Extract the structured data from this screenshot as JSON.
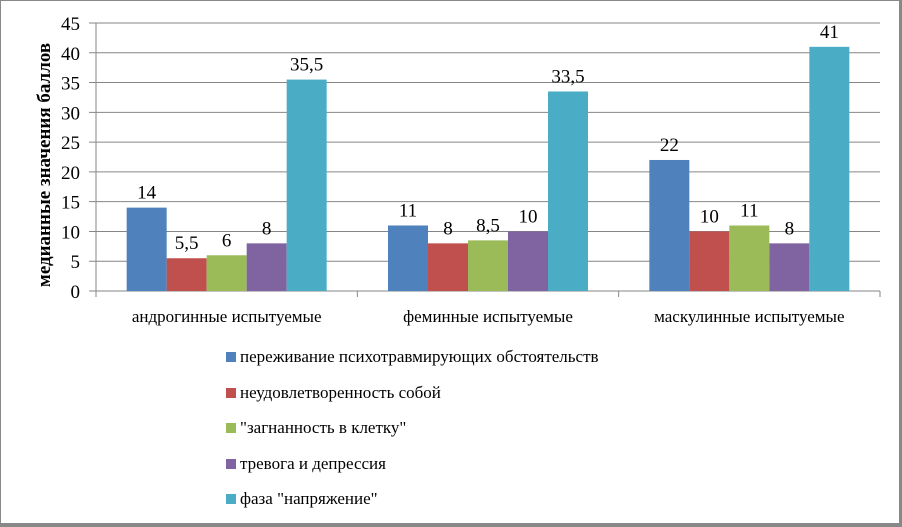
{
  "chart_data": {
    "type": "bar",
    "title": "",
    "xlabel": "",
    "ylabel": "медианные значения баллов",
    "ylim": [
      0,
      45
    ],
    "yticks": [
      0,
      5,
      10,
      15,
      20,
      25,
      30,
      35,
      40,
      45
    ],
    "grid": true,
    "legend_position": "bottom",
    "categories": [
      "андрогинные испытуемые",
      "феминные испытуемые",
      "маскулинные  испытуемые"
    ],
    "series": [
      {
        "name": "переживание психотравмирующих  обстоятельств",
        "color": "#4F81BD",
        "values": [
          14,
          11,
          22
        ],
        "labels": [
          "14",
          "11",
          "22"
        ]
      },
      {
        "name": "неудовлетворенность собой",
        "color": "#C0504D",
        "values": [
          5.5,
          8,
          10
        ],
        "labels": [
          "5,5",
          "8",
          "10"
        ]
      },
      {
        "name": "\"загнанность в клетку\"",
        "color": "#9BBB59",
        "values": [
          6,
          8.5,
          11
        ],
        "labels": [
          "6",
          "8,5",
          "11"
        ]
      },
      {
        "name": "тревога и депрессия",
        "color": "#8064A2",
        "values": [
          8,
          10,
          8
        ],
        "labels": [
          "8",
          "10",
          "8"
        ]
      },
      {
        "name": "фаза \"напряжение\"",
        "color": "#4BACC6",
        "values": [
          35.5,
          33.5,
          41
        ],
        "labels": [
          "35,5",
          "33,5",
          "41"
        ]
      }
    ]
  }
}
